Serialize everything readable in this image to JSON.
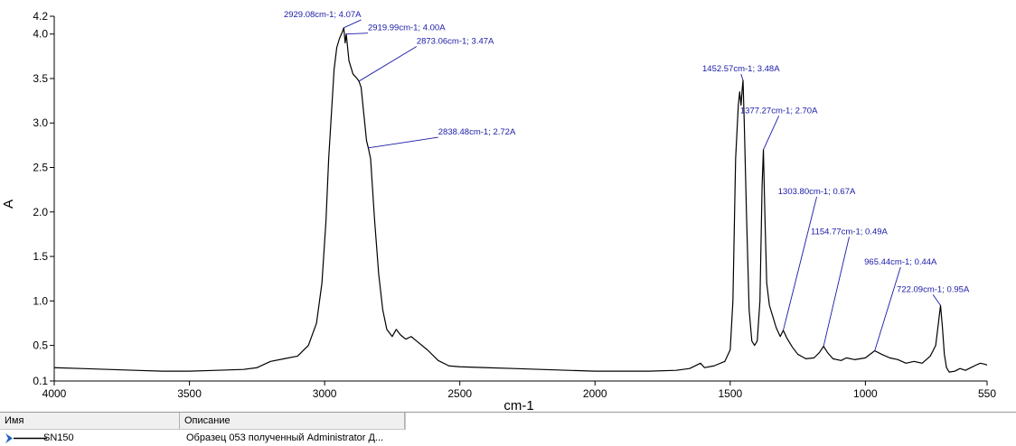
{
  "chart_data": {
    "type": "line",
    "xlabel": "cm-1",
    "ylabel": "A",
    "xlim": [
      4000,
      550
    ],
    "ylim": [
      0.1,
      4.2
    ],
    "x_reversed": true,
    "x_ticks": [
      4000,
      3500,
      3000,
      2500,
      2000,
      1500,
      1000,
      550
    ],
    "y_ticks": [
      {
        "value": 0.1,
        "label": "0.1"
      },
      {
        "value": 0.5,
        "label": "0.5"
      },
      {
        "value": 1.0,
        "label": "1.0"
      },
      {
        "value": 1.5,
        "label": "1.5"
      },
      {
        "value": 2.0,
        "label": "2.0"
      },
      {
        "value": 2.5,
        "label": "2.5"
      },
      {
        "value": 3.0,
        "label": "3.0"
      },
      {
        "value": 3.5,
        "label": "3.5"
      },
      {
        "value": 4.0,
        "label": "4.0"
      },
      {
        "value": 4.2,
        "label": "4.2"
      }
    ],
    "grid": false,
    "series": [
      {
        "name": "SN150",
        "color": "#000000",
        "points": [
          [
            4000,
            0.25
          ],
          [
            3900,
            0.24
          ],
          [
            3800,
            0.23
          ],
          [
            3700,
            0.22
          ],
          [
            3600,
            0.21
          ],
          [
            3500,
            0.21
          ],
          [
            3400,
            0.22
          ],
          [
            3300,
            0.23
          ],
          [
            3250,
            0.25
          ],
          [
            3200,
            0.32
          ],
          [
            3150,
            0.35
          ],
          [
            3100,
            0.38
          ],
          [
            3060,
            0.5
          ],
          [
            3030,
            0.75
          ],
          [
            3010,
            1.2
          ],
          [
            2995,
            1.9
          ],
          [
            2985,
            2.6
          ],
          [
            2975,
            3.1
          ],
          [
            2965,
            3.6
          ],
          [
            2955,
            3.85
          ],
          [
            2945,
            3.95
          ],
          [
            2935,
            4.02
          ],
          [
            2929.08,
            4.07
          ],
          [
            2924,
            3.9
          ],
          [
            2919.99,
            4.0
          ],
          [
            2910,
            3.7
          ],
          [
            2895,
            3.55
          ],
          [
            2880,
            3.5
          ],
          [
            2873.06,
            3.47
          ],
          [
            2865,
            3.4
          ],
          [
            2855,
            3.1
          ],
          [
            2845,
            2.8
          ],
          [
            2838.48,
            2.72
          ],
          [
            2830,
            2.6
          ],
          [
            2815,
            1.9
          ],
          [
            2800,
            1.3
          ],
          [
            2785,
            0.9
          ],
          [
            2770,
            0.68
          ],
          [
            2750,
            0.6
          ],
          [
            2735,
            0.68
          ],
          [
            2720,
            0.62
          ],
          [
            2700,
            0.57
          ],
          [
            2680,
            0.6
          ],
          [
            2660,
            0.55
          ],
          [
            2620,
            0.45
          ],
          [
            2580,
            0.33
          ],
          [
            2540,
            0.27
          ],
          [
            2500,
            0.26
          ],
          [
            2400,
            0.25
          ],
          [
            2300,
            0.24
          ],
          [
            2200,
            0.23
          ],
          [
            2100,
            0.22
          ],
          [
            2000,
            0.21
          ],
          [
            1900,
            0.21
          ],
          [
            1800,
            0.21
          ],
          [
            1700,
            0.22
          ],
          [
            1650,
            0.24
          ],
          [
            1610,
            0.3
          ],
          [
            1595,
            0.25
          ],
          [
            1560,
            0.27
          ],
          [
            1520,
            0.32
          ],
          [
            1500,
            0.45
          ],
          [
            1490,
            1.0
          ],
          [
            1480,
            2.6
          ],
          [
            1470,
            3.2
          ],
          [
            1465,
            3.35
          ],
          [
            1460,
            3.2
          ],
          [
            1455,
            3.4
          ],
          [
            1452.57,
            3.48
          ],
          [
            1448,
            3.0
          ],
          [
            1440,
            2.0
          ],
          [
            1430,
            0.9
          ],
          [
            1420,
            0.55
          ],
          [
            1410,
            0.5
          ],
          [
            1400,
            0.55
          ],
          [
            1390,
            1.0
          ],
          [
            1382,
            2.3
          ],
          [
            1377.27,
            2.7
          ],
          [
            1372,
            2.0
          ],
          [
            1365,
            1.2
          ],
          [
            1355,
            0.95
          ],
          [
            1345,
            0.85
          ],
          [
            1330,
            0.7
          ],
          [
            1315,
            0.6
          ],
          [
            1303.8,
            0.67
          ],
          [
            1290,
            0.58
          ],
          [
            1270,
            0.48
          ],
          [
            1250,
            0.4
          ],
          [
            1220,
            0.35
          ],
          [
            1190,
            0.36
          ],
          [
            1170,
            0.42
          ],
          [
            1154.77,
            0.49
          ],
          [
            1140,
            0.42
          ],
          [
            1120,
            0.35
          ],
          [
            1090,
            0.33
          ],
          [
            1070,
            0.36
          ],
          [
            1040,
            0.34
          ],
          [
            1000,
            0.36
          ],
          [
            965.44,
            0.44
          ],
          [
            940,
            0.4
          ],
          [
            910,
            0.36
          ],
          [
            880,
            0.34
          ],
          [
            850,
            0.3
          ],
          [
            820,
            0.32
          ],
          [
            790,
            0.3
          ],
          [
            760,
            0.38
          ],
          [
            740,
            0.5
          ],
          [
            730,
            0.75
          ],
          [
            722.09,
            0.95
          ],
          [
            715,
            0.7
          ],
          [
            708,
            0.4
          ],
          [
            700,
            0.25
          ],
          [
            690,
            0.2
          ],
          [
            670,
            0.21
          ],
          [
            650,
            0.24
          ],
          [
            630,
            0.22
          ],
          [
            610,
            0.25
          ],
          [
            590,
            0.28
          ],
          [
            575,
            0.3
          ],
          [
            560,
            0.29
          ],
          [
            550,
            0.28
          ]
        ]
      }
    ],
    "annotations": [
      {
        "x": 2929.08,
        "y": 4.07,
        "label": "2929.08cm-1; 4.07A",
        "anchor_x": 2865,
        "anchor_y": 4.16,
        "align": "end"
      },
      {
        "x": 2919.99,
        "y": 4.0,
        "label": "2919.99cm-1; 4.00A",
        "anchor_x": 2840,
        "anchor_y": 4.01,
        "align": "start"
      },
      {
        "x": 2873.06,
        "y": 3.47,
        "label": "2873.06cm-1; 3.47A",
        "anchor_x": 2660,
        "anchor_y": 3.86,
        "align": "start"
      },
      {
        "x": 2838.48,
        "y": 2.72,
        "label": "2838.48cm-1; 2.72A",
        "anchor_x": 2580,
        "anchor_y": 2.84,
        "align": "start"
      },
      {
        "x": 1452.57,
        "y": 3.48,
        "label": "1452.57cm-1; 3.48A",
        "anchor_x": 1460,
        "anchor_y": 3.55,
        "align": "middle"
      },
      {
        "x": 1377.27,
        "y": 2.7,
        "label": "1377.27cm-1; 2.70A",
        "anchor_x": 1320,
        "anchor_y": 3.08,
        "align": "middle"
      },
      {
        "x": 1303.8,
        "y": 0.67,
        "label": "1303.80cm-1; 0.67A",
        "anchor_x": 1180,
        "anchor_y": 2.17,
        "align": "middle"
      },
      {
        "x": 1154.77,
        "y": 0.49,
        "label": "1154.77cm-1; 0.49A",
        "anchor_x": 1060,
        "anchor_y": 1.72,
        "align": "middle"
      },
      {
        "x": 965.44,
        "y": 0.44,
        "label": "965.44cm-1; 0.44A",
        "anchor_x": 870,
        "anchor_y": 1.38,
        "align": "middle"
      },
      {
        "x": 722.09,
        "y": 0.95,
        "label": "722.09cm-1; 0.95A",
        "anchor_x": 750,
        "anchor_y": 1.07,
        "align": "middle"
      }
    ]
  },
  "legend": {
    "header_name": "Имя",
    "header_desc": "Описание",
    "rows": [
      {
        "name": "SN150",
        "description": "Образец 053 полученный Administrator Д...",
        "line_color": "#000000",
        "marker_color": "#1f5fbf"
      }
    ]
  }
}
